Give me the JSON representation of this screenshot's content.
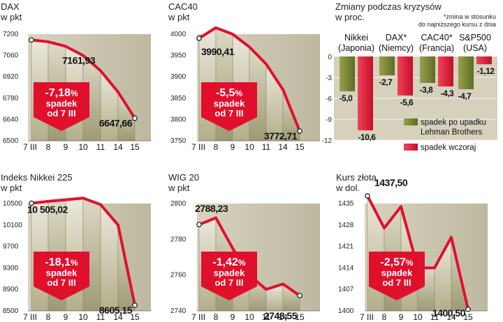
{
  "colors": {
    "line": "#e0102c",
    "arrow": "#e0102c",
    "band": "#cfcab7",
    "fill_light": "#e9e5d8",
    "fill_dark": "#a7a480",
    "bar_green": "#7e8a39",
    "bar_red": "#e01a35"
  },
  "arrow_badge": {
    "word": "spadek",
    "from": "od 7 III"
  },
  "chart_data": [
    {
      "type": "line",
      "id": "dax",
      "title": "DAX",
      "subtitle": "w pkt",
      "categories": [
        "7 III",
        "8",
        "9",
        "10",
        "11",
        "14",
        "15"
      ],
      "values": [
        7161.93,
        7150,
        7120,
        7060,
        6960,
        6820,
        6647.66
      ],
      "ylim": [
        6500,
        7200
      ],
      "yticks": [
        "7200",
        "7060",
        "6920",
        "6780",
        "6640",
        "6500"
      ],
      "first_label": "7161,93",
      "last_label": "6647,66",
      "change": {
        "value": "-7,18",
        "unit": "%"
      }
    },
    {
      "type": "line",
      "id": "cac40",
      "title": "CAC40",
      "subtitle": "w pkt",
      "categories": [
        "7 III",
        "8",
        "9",
        "10",
        "11",
        "14",
        "15"
      ],
      "values": [
        3990.41,
        4015,
        4000,
        3970,
        3930,
        3870,
        3772.71
      ],
      "ylim": [
        3750,
        4000
      ],
      "yticks": [
        "4000",
        "3950",
        "3900",
        "3850",
        "3800",
        "3750"
      ],
      "first_label": "3990,41",
      "last_label": "3772,71",
      "change": {
        "value": "-5,5",
        "unit": "%"
      }
    },
    {
      "type": "bar",
      "id": "kryzysy",
      "title": "Zmiany podczas kryzysów",
      "subtitle": "w proc.",
      "note": [
        "*zmina w stosunku",
        "do najniższego kursu z dnia"
      ],
      "groups": [
        {
          "line1": "Nikkei",
          "line2": "(Japonia)"
        },
        {
          "line1": "DAX*",
          "line2": "(Niemcy)"
        },
        {
          "line1": "CAC40*",
          "line2": "(Francja)"
        },
        {
          "line1": "S&P500",
          "line2": "(USA)"
        }
      ],
      "series": [
        {
          "name": "spadek po upadku Lehman Brothers",
          "values": [
            -5.0,
            -2.7,
            -3.8,
            -4.7
          ],
          "labels": [
            "-5,0",
            "-2,7",
            "-3,8",
            "-4,7"
          ]
        },
        {
          "name": "spadek wczoraj",
          "values": [
            -10.6,
            -5.6,
            -4.3,
            -1.12
          ],
          "labels": [
            "-10,6",
            "-5,6",
            "-4,3",
            "-1,12"
          ]
        }
      ],
      "legend": [
        "spadek po upadku",
        "Lehman Brothers",
        "spadek wczoraj"
      ],
      "ylim": [
        -12,
        0
      ],
      "yticks": [
        "0",
        "-3",
        "-6",
        "-9",
        "-12"
      ]
    },
    {
      "type": "line",
      "id": "nikkei",
      "title": "Indeks Nikkei 225",
      "subtitle": "w pkt",
      "categories": [
        "7 III",
        "8",
        "9",
        "10",
        "11",
        "14",
        "15"
      ],
      "values": [
        10505.02,
        10540,
        10570,
        10600,
        10480,
        10100,
        8605.15
      ],
      "ylim": [
        8500,
        10500
      ],
      "yticks": [
        "10500",
        "10100",
        "9700",
        "9300",
        "8900",
        "8500"
      ],
      "first_label": "10 505,02",
      "last_label": "8605,15",
      "change": {
        "value": "-18,1",
        "unit": "%"
      }
    },
    {
      "type": "line",
      "id": "wig20",
      "title": "WIG 20",
      "subtitle": "w pkt",
      "categories": [
        "7 III",
        "8",
        "9",
        "10",
        "11",
        "14",
        "15"
      ],
      "values": [
        2788.23,
        2792,
        2775,
        2760,
        2752,
        2755,
        2748.55
      ],
      "ylim": [
        2740,
        2800
      ],
      "yticks": [
        "2800",
        "2780",
        "2760",
        "2740"
      ],
      "first_label": "2788,23",
      "last_label": "2748,55",
      "change": {
        "value": "-1,42",
        "unit": "%"
      }
    },
    {
      "type": "line",
      "id": "zloto",
      "title": "Kurs złota",
      "subtitle": "w dol.",
      "categories": [
        "7 III",
        "8",
        "9",
        "10",
        "11",
        "14",
        "15"
      ],
      "values": [
        1437.5,
        1427,
        1434,
        1414,
        1414,
        1424,
        1400.5
      ],
      "ylim": [
        1400,
        1435
      ],
      "yticks": [
        "1435",
        "1428",
        "1421",
        "1414",
        "1407",
        "1400"
      ],
      "first_label": "1437,50",
      "last_label": "1400,50",
      "change": {
        "value": "-2,57",
        "unit": "%"
      }
    }
  ]
}
